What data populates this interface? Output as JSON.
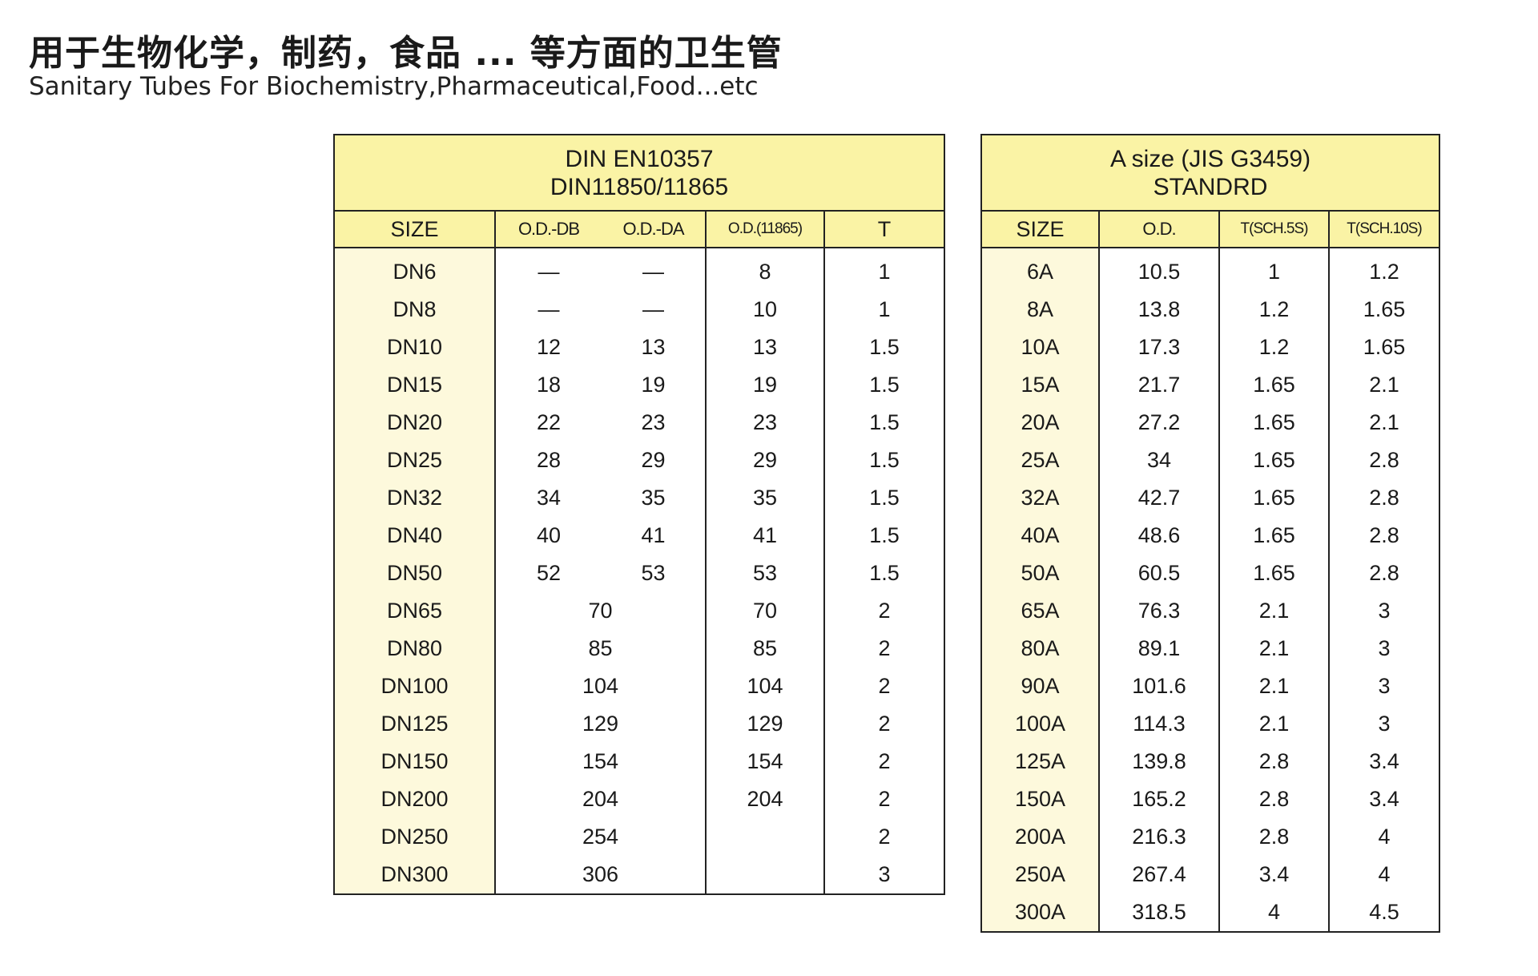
{
  "title_cn": "用于生物化学，制药，食品 ... 等方面的卫生管",
  "title_en": "Sanitary Tubes For Biochemistry,Pharmaceutical,Food...etc",
  "table_din": {
    "caption_line1": "DIN EN10357",
    "caption_line2": "DIN11850/11865",
    "headers": [
      "SIZE",
      "O.D.-DB",
      "O.D.-DA",
      "O.D.(11865)",
      "T"
    ],
    "rows": [
      {
        "size": "DN6",
        "db": "—",
        "da": "—",
        "od": "8",
        "t": "1"
      },
      {
        "size": "DN8",
        "db": "—",
        "da": "—",
        "od": "10",
        "t": "1"
      },
      {
        "size": "DN10",
        "db": "12",
        "da": "13",
        "od": "13",
        "t": "1.5"
      },
      {
        "size": "DN15",
        "db": "18",
        "da": "19",
        "od": "19",
        "t": "1.5"
      },
      {
        "size": "DN20",
        "db": "22",
        "da": "23",
        "od": "23",
        "t": "1.5"
      },
      {
        "size": "DN25",
        "db": "28",
        "da": "29",
        "od": "29",
        "t": "1.5"
      },
      {
        "size": "DN32",
        "db": "34",
        "da": "35",
        "od": "35",
        "t": "1.5"
      },
      {
        "size": "DN40",
        "db": "40",
        "da": "41",
        "od": "41",
        "t": "1.5"
      },
      {
        "size": "DN50",
        "db": "52",
        "da": "53",
        "od": "53",
        "t": "1.5"
      },
      {
        "size": "DN65",
        "merged": "70",
        "od": "70",
        "t": "2"
      },
      {
        "size": "DN80",
        "merged": "85",
        "od": "85",
        "t": "2"
      },
      {
        "size": "DN100",
        "merged": "104",
        "od": "104",
        "t": "2"
      },
      {
        "size": "DN125",
        "merged": "129",
        "od": "129",
        "t": "2"
      },
      {
        "size": "DN150",
        "merged": "154",
        "od": "154",
        "t": "2"
      },
      {
        "size": "DN200",
        "merged": "204",
        "od": "204",
        "t": "2"
      },
      {
        "size": "DN250",
        "merged": "254",
        "od": "",
        "t": "2"
      },
      {
        "size": "DN300",
        "merged": "306",
        "od": "",
        "t": "3"
      }
    ]
  },
  "table_jis": {
    "caption_line1": "A size (JIS G3459)",
    "caption_line2": "STANDRD",
    "headers": [
      "SIZE",
      "O.D.",
      "T(SCH.5S)",
      "T(SCH.10S)"
    ],
    "rows": [
      {
        "size": "6A",
        "od": "10.5",
        "t5": "1",
        "t10": "1.2"
      },
      {
        "size": "8A",
        "od": "13.8",
        "t5": "1.2",
        "t10": "1.65"
      },
      {
        "size": "10A",
        "od": "17.3",
        "t5": "1.2",
        "t10": "1.65"
      },
      {
        "size": "15A",
        "od": "21.7",
        "t5": "1.65",
        "t10": "2.1"
      },
      {
        "size": "20A",
        "od": "27.2",
        "t5": "1.65",
        "t10": "2.1"
      },
      {
        "size": "25A",
        "od": "34",
        "t5": "1.65",
        "t10": "2.8"
      },
      {
        "size": "32A",
        "od": "42.7",
        "t5": "1.65",
        "t10": "2.8"
      },
      {
        "size": "40A",
        "od": "48.6",
        "t5": "1.65",
        "t10": "2.8"
      },
      {
        "size": "50A",
        "od": "60.5",
        "t5": "1.65",
        "t10": "2.8"
      },
      {
        "size": "65A",
        "od": "76.3",
        "t5": "2.1",
        "t10": "3"
      },
      {
        "size": "80A",
        "od": "89.1",
        "t5": "2.1",
        "t10": "3"
      },
      {
        "size": "90A",
        "od": "101.6",
        "t5": "2.1",
        "t10": "3"
      },
      {
        "size": "100A",
        "od": "114.3",
        "t5": "2.1",
        "t10": "3"
      },
      {
        "size": "125A",
        "od": "139.8",
        "t5": "2.8",
        "t10": "3.4"
      },
      {
        "size": "150A",
        "od": "165.2",
        "t5": "2.8",
        "t10": "3.4"
      },
      {
        "size": "200A",
        "od": "216.3",
        "t5": "2.8",
        "t10": "4"
      },
      {
        "size": "250A",
        "od": "267.4",
        "t5": "3.4",
        "t10": "4"
      },
      {
        "size": "300A",
        "od": "318.5",
        "t5": "4",
        "t10": "4.5"
      }
    ]
  }
}
